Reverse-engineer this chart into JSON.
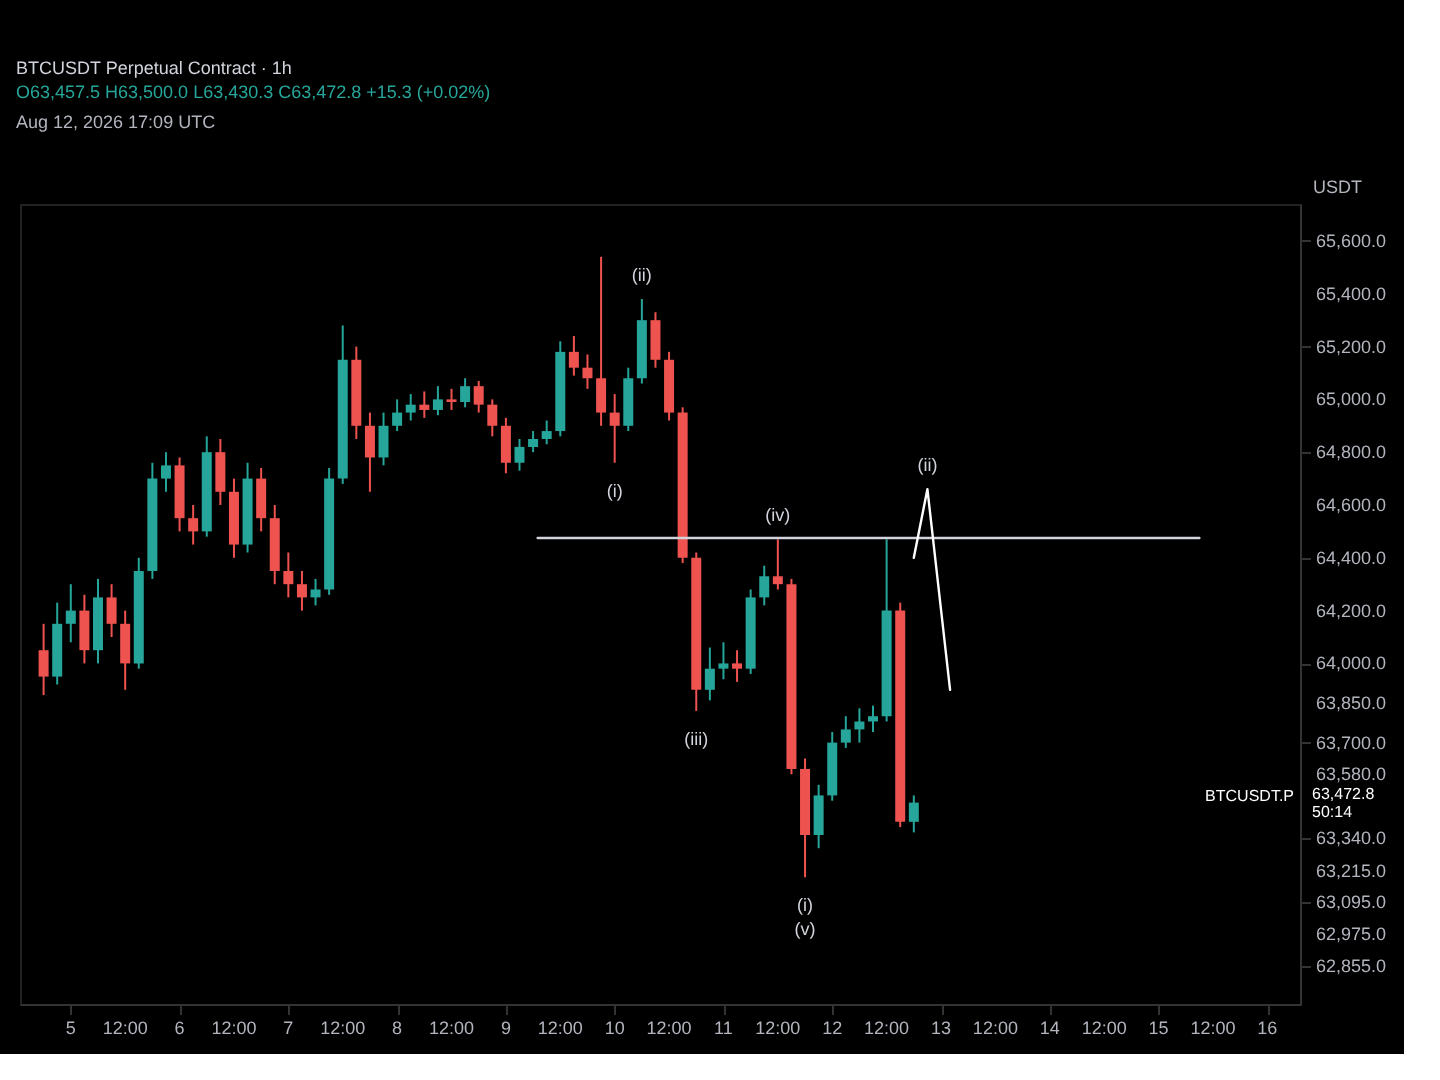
{
  "chart_data": {
    "type": "candlestick",
    "title": "BTCUSDT Perpetual Contract · 1h",
    "subtitle": "O63,457.5 H63,500.0 L63,430.3 C63,472.8 +15.3 (+0.02%)",
    "ylabel": "USDT",
    "x": [
      "2026-08-04T18:00",
      "2026-08-04T21:00",
      "2026-08-05T00:00",
      "2026-08-05T03:00",
      "2026-08-05T06:00",
      "2026-08-05T09:00",
      "2026-08-05T12:00",
      "2026-08-05T15:00",
      "2026-08-05T18:00",
      "2026-08-05T21:00",
      "2026-08-06T00:00",
      "2026-08-06T03:00",
      "2026-08-06T06:00",
      "2026-08-06T09:00",
      "2026-08-06T12:00",
      "2026-08-06T15:00",
      "2026-08-06T18:00",
      "2026-08-06T21:00",
      "2026-08-07T00:00",
      "2026-08-07T03:00",
      "2026-08-07T06:00",
      "2026-08-07T09:00",
      "2026-08-07T12:00",
      "2026-08-07T15:00",
      "2026-08-07T18:00",
      "2026-08-07T21:00",
      "2026-08-08T00:00",
      "2026-08-08T03:00",
      "2026-08-08T06:00",
      "2026-08-08T09:00",
      "2026-08-08T12:00",
      "2026-08-08T15:00",
      "2026-08-08T18:00",
      "2026-08-08T21:00",
      "2026-08-09T00:00",
      "2026-08-09T03:00",
      "2026-08-09T06:00",
      "2026-08-09T09:00",
      "2026-08-09T12:00",
      "2026-08-09T15:00",
      "2026-08-09T18:00",
      "2026-08-09T21:00",
      "2026-08-10T00:00",
      "2026-08-10T03:00",
      "2026-08-10T06:00",
      "2026-08-10T09:00",
      "2026-08-10T12:00",
      "2026-08-10T15:00",
      "2026-08-10T18:00",
      "2026-08-10T21:00",
      "2026-08-11T00:00",
      "2026-08-11T03:00",
      "2026-08-11T06:00",
      "2026-08-11T09:00",
      "2026-08-11T12:00",
      "2026-08-11T15:00",
      "2026-08-11T18:00",
      "2026-08-11T21:00",
      "2026-08-12T00:00",
      "2026-08-12T03:00",
      "2026-08-12T06:00",
      "2026-08-12T09:00",
      "2026-08-12T12:00",
      "2026-08-12T15:00",
      "2026-08-12T18:00"
    ],
    "ohlc": [
      [
        64050,
        64150,
        63880,
        63950
      ],
      [
        63950,
        64230,
        63920,
        64150
      ],
      [
        64150,
        64300,
        64080,
        64200
      ],
      [
        64200,
        64260,
        64000,
        64050
      ],
      [
        64050,
        64320,
        64000,
        64250
      ],
      [
        64250,
        64300,
        64100,
        64150
      ],
      [
        64150,
        64200,
        63900,
        64000
      ],
      [
        64000,
        64400,
        63980,
        64350
      ],
      [
        64350,
        64760,
        64320,
        64700
      ],
      [
        64700,
        64800,
        64650,
        64750
      ],
      [
        64750,
        64780,
        64500,
        64550
      ],
      [
        64550,
        64600,
        64450,
        64500
      ],
      [
        64500,
        64860,
        64480,
        64800
      ],
      [
        64800,
        64850,
        64600,
        64650
      ],
      [
        64650,
        64700,
        64400,
        64450
      ],
      [
        64450,
        64760,
        64420,
        64700
      ],
      [
        64700,
        64740,
        64500,
        64550
      ],
      [
        64550,
        64600,
        64300,
        64350
      ],
      [
        64350,
        64420,
        64250,
        64300
      ],
      [
        64300,
        64350,
        64200,
        64250
      ],
      [
        64250,
        64320,
        64220,
        64280
      ],
      [
        64280,
        64740,
        64260,
        64700
      ],
      [
        64700,
        65280,
        64680,
        65150
      ],
      [
        65150,
        65200,
        64850,
        64900
      ],
      [
        64900,
        64950,
        64650,
        64780
      ],
      [
        64780,
        64950,
        64750,
        64900
      ],
      [
        64900,
        65000,
        64880,
        64950
      ],
      [
        64950,
        65020,
        64920,
        64980
      ],
      [
        64980,
        65030,
        64930,
        64960
      ],
      [
        64960,
        65050,
        64940,
        65000
      ],
      [
        65000,
        65040,
        64960,
        64990
      ],
      [
        64990,
        65080,
        64970,
        65050
      ],
      [
        65050,
        65070,
        64950,
        64980
      ],
      [
        64980,
        65000,
        64860,
        64900
      ],
      [
        64900,
        64930,
        64720,
        64760
      ],
      [
        64760,
        64850,
        64730,
        64820
      ],
      [
        64820,
        64880,
        64800,
        64850
      ],
      [
        64850,
        64920,
        64830,
        64880
      ],
      [
        64880,
        65220,
        64860,
        65180
      ],
      [
        65180,
        65240,
        65090,
        65120
      ],
      [
        65120,
        65170,
        65040,
        65080
      ],
      [
        65080,
        65540,
        64900,
        64950
      ],
      [
        64950,
        65020,
        64760,
        64900
      ],
      [
        64900,
        65120,
        64880,
        65080
      ],
      [
        65080,
        65380,
        65060,
        65300
      ],
      [
        65300,
        65330,
        65120,
        65150
      ],
      [
        65150,
        65180,
        64920,
        64950
      ],
      [
        64950,
        64970,
        64380,
        64400
      ],
      [
        64400,
        64420,
        63820,
        63900
      ],
      [
        63900,
        64060,
        63860,
        63980
      ],
      [
        63980,
        64080,
        63940,
        64000
      ],
      [
        64000,
        64050,
        63930,
        63980
      ],
      [
        63980,
        64280,
        63960,
        64250
      ],
      [
        64250,
        64370,
        64220,
        64330
      ],
      [
        64330,
        64470,
        64280,
        64300
      ],
      [
        64300,
        64320,
        63580,
        63600
      ],
      [
        63600,
        63640,
        63190,
        63350
      ],
      [
        63350,
        63540,
        63300,
        63500
      ],
      [
        63500,
        63740,
        63480,
        63700
      ],
      [
        63700,
        63800,
        63680,
        63750
      ],
      [
        63750,
        63830,
        63700,
        63780
      ],
      [
        63780,
        63840,
        63740,
        63800
      ],
      [
        63800,
        64470,
        63780,
        64200
      ],
      [
        64200,
        64230,
        63380,
        63400
      ],
      [
        63400,
        63500,
        63360,
        63472.8
      ]
    ],
    "colors": [
      "#ef5350",
      "#26a69a",
      "#26a69a",
      "#ef5350",
      "#26a69a",
      "#ef5350",
      "#ef5350",
      "#26a69a",
      "#26a69a",
      "#26a69a",
      "#ef5350",
      "#ef5350",
      "#26a69a",
      "#ef5350",
      "#ef5350",
      "#26a69a",
      "#ef5350",
      "#ef5350",
      "#ef5350",
      "#ef5350",
      "#26a69a",
      "#26a69a",
      "#26a69a",
      "#ef5350",
      "#ef5350",
      "#26a69a",
      "#26a69a",
      "#26a69a",
      "#ef5350",
      "#26a69a",
      "#ef5350",
      "#26a69a",
      "#ef5350",
      "#ef5350",
      "#ef5350",
      "#26a69a",
      "#26a69a",
      "#26a69a",
      "#26a69a",
      "#ef5350",
      "#ef5350",
      "#ef5350",
      "#ef5350",
      "#26a69a",
      "#26a69a",
      "#ef5350",
      "#ef5350",
      "#ef5350",
      "#ef5350",
      "#26a69a",
      "#26a69a",
      "#ef5350",
      "#26a69a",
      "#26a69a",
      "#ef5350",
      "#ef5350",
      "#ef5350",
      "#26a69a",
      "#26a69a",
      "#26a69a",
      "#26a69a",
      "#26a69a",
      "#26a69a",
      "#ef5350",
      "#26a69a"
    ],
    "series": [
      {
        "type": "line",
        "color": "#d1d4dc",
        "x": [
          "2026-08-09T07:00",
          "2026-08-15T09:00"
        ],
        "values": [
          64475,
          64475
        ]
      },
      {
        "type": "line",
        "color": "#ffffff",
        "x": [
          "2026-08-12T18:00",
          "2026-08-12T21:00",
          "2026-08-13T02:00"
        ],
        "values": [
          64400,
          64660,
          63900
        ]
      }
    ],
    "ylim": [
      62710,
      65740
    ],
    "yticks": [
      {
        "value": 65600,
        "label": "65,600.0"
      },
      {
        "value": 65400,
        "label": "65,400.0"
      },
      {
        "value": 65200,
        "label": "65,200.0"
      },
      {
        "value": 65000,
        "label": "65,000.0"
      },
      {
        "value": 64800,
        "label": "64,800.0"
      },
      {
        "value": 64600,
        "label": "64,600.0"
      },
      {
        "value": 64400,
        "label": "64,400.0"
      },
      {
        "value": 64200,
        "label": "64,200.0"
      },
      {
        "value": 64000,
        "label": "64,000.0"
      },
      {
        "value": 63850,
        "label": "63,850.0"
      },
      {
        "value": 63700,
        "label": "63,700.0"
      },
      {
        "value": 63580,
        "label": "63,580.0"
      },
      {
        "value": 63340,
        "label": "63,340.0"
      },
      {
        "value": 63215,
        "label": "63,215.0"
      },
      {
        "value": 63095,
        "label": "63,095.0"
      },
      {
        "value": 62975,
        "label": "62,975.0"
      },
      {
        "value": 62855,
        "label": "62,855.0"
      }
    ],
    "xlim": [
      "2026-08-04T15:00",
      "2026-08-16T05:00"
    ],
    "xticks": [
      {
        "value": "2026-08-05",
        "label": "5"
      },
      {
        "value": "2026-08-05T12:00",
        "label": "12:00"
      },
      {
        "value": "2026-08-06",
        "label": "6"
      },
      {
        "value": "2026-08-06T12:00",
        "label": "12:00"
      },
      {
        "value": "2026-08-07",
        "label": "7"
      },
      {
        "value": "2026-08-07T12:00",
        "label": "12:00"
      },
      {
        "value": "2026-08-08",
        "label": "8"
      },
      {
        "value": "2026-08-08T12:00",
        "label": "12:00"
      },
      {
        "value": "2026-08-09",
        "label": "9"
      },
      {
        "value": "2026-08-09T12:00",
        "label": "12:00"
      },
      {
        "value": "2026-08-10",
        "label": "10"
      },
      {
        "value": "2026-08-10T12:00",
        "label": "12:00"
      },
      {
        "value": "2026-08-11",
        "label": "11"
      },
      {
        "value": "2026-08-11T12:00",
        "label": "12:00"
      },
      {
        "value": "2026-08-12",
        "label": "12"
      },
      {
        "value": "2026-08-12T12:00",
        "label": "12:00"
      },
      {
        "value": "2026-08-13",
        "label": "13"
      },
      {
        "value": "2026-08-13T12:00",
        "label": "12:00"
      },
      {
        "value": "2026-08-14",
        "label": "14"
      },
      {
        "value": "2026-08-14T12:00",
        "label": "12:00"
      },
      {
        "value": "2026-08-15",
        "label": "15"
      },
      {
        "value": "2026-08-15T12:00",
        "label": "12:00"
      },
      {
        "value": "2026-08-16",
        "label": "16"
      }
    ],
    "annotations": [
      "Aug 12, 2026 17:09 UTC",
      {
        "text": "(i)",
        "x": "2026-08-10T00:00",
        "y": 64760
      },
      {
        "text": "(ii)",
        "x": "2026-08-10T06:00",
        "y": 65380
      },
      {
        "text": "(iii)",
        "x": "2026-08-10T18:00",
        "y": 63820
      },
      {
        "text": "(iv)",
        "x": "2026-08-11T12:00",
        "y": 64470
      },
      {
        "text": "(i)",
        "x": "2026-08-11T18:00",
        "y": 63190
      },
      {
        "text": "(v)",
        "x": "2026-08-11T18:00",
        "y": 63190
      },
      {
        "text": "(ii)",
        "x": "2026-08-12T21:00",
        "y": 64660
      },
      "BTCUSDT.P",
      "63,472.8",
      "50:14"
    ]
  }
}
